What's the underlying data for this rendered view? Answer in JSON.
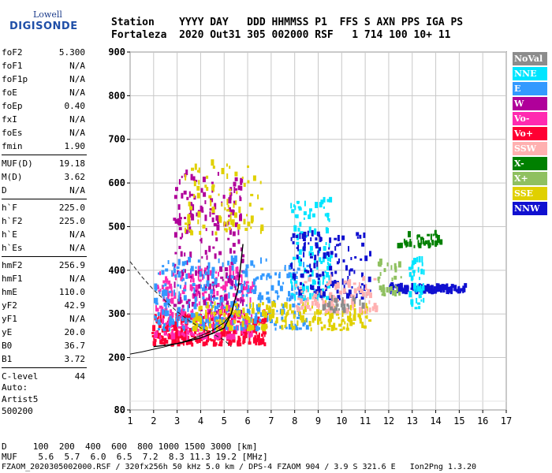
{
  "logo": {
    "top": "Lowell",
    "main": "DIGISONDE"
  },
  "header": {
    "line1": "Station    YYYY DAY   DDD HHMMSS P1  FFS S AXN PPS IGA PS",
    "line2": "Fortaleza  2020 Out31 305 002000 RSF   1 714 100 10+ 11"
  },
  "params": [
    [
      {
        "n": "foF2",
        "v": "5.300"
      },
      {
        "n": "foF1",
        "v": "N/A"
      },
      {
        "n": "foF1p",
        "v": "N/A"
      },
      {
        "n": "foE",
        "v": "N/A"
      },
      {
        "n": "foEp",
        "v": "0.40"
      },
      {
        "n": "fxI",
        "v": "N/A"
      },
      {
        "n": "foEs",
        "v": "N/A"
      },
      {
        "n": "fmin",
        "v": "1.90"
      }
    ],
    [
      {
        "n": "MUF(D)",
        "v": "19.18"
      },
      {
        "n": "M(D)",
        "v": "3.62"
      },
      {
        "n": "D",
        "v": "N/A"
      }
    ],
    [
      {
        "n": "h`F",
        "v": "225.0"
      },
      {
        "n": "h`F2",
        "v": "225.0"
      },
      {
        "n": "h`E",
        "v": "N/A"
      },
      {
        "n": "h`Es",
        "v": "N/A"
      }
    ],
    [
      {
        "n": "hmF2",
        "v": "256.9"
      },
      {
        "n": "hmF1",
        "v": "N/A"
      },
      {
        "n": "hmE",
        "v": "110.0"
      },
      {
        "n": "yF2",
        "v": "42.9"
      },
      {
        "n": "yF1",
        "v": "N/A"
      },
      {
        "n": "yE",
        "v": "20.0"
      },
      {
        "n": "B0",
        "v": "36.7"
      },
      {
        "n": "B1",
        "v": "3.72"
      }
    ],
    [
      {
        "n": "C-level",
        "v": "44"
      }
    ]
  ],
  "auto": [
    "Auto:",
    "Artist5",
    "500200"
  ],
  "legend": [
    {
      "label": "NoVal",
      "color": "#8c8c8c"
    },
    {
      "label": "NNE",
      "color": "#00e5ff"
    },
    {
      "label": "E",
      "color": "#3399ff"
    },
    {
      "label": "W",
      "color": "#b0009a"
    },
    {
      "label": "Vo-",
      "color": "#ff2ab0"
    },
    {
      "label": "Vo+",
      "color": "#ff0033"
    },
    {
      "label": "SSW",
      "color": "#ffb0b0"
    },
    {
      "label": "X-",
      "color": "#008000"
    },
    {
      "label": "X+",
      "color": "#8fc060"
    },
    {
      "label": "SSE",
      "color": "#e0d000"
    },
    {
      "label": "NNW",
      "color": "#1010d0"
    }
  ],
  "bottom": {
    "d_line": "D     100  200  400  600  800 1000 1500 3000 [km]",
    "muf_line": "MUF    5.6  5.7  6.0  6.5  7.2  8.3 11.3 19.2 [MHz]",
    "footer": "FZAOM_2020305002000.RSF / 320fx256h 50 kHz 5.0 km / DPS-4 FZAOM 904 / 3.9 S 321.6 E   Ion2Png 1.3.20"
  },
  "chart_data": {
    "type": "scatter",
    "xlim": [
      1,
      17
    ],
    "ylim": [
      80,
      900
    ],
    "x_ticks": [
      1,
      2,
      3,
      4,
      5,
      6,
      7,
      8,
      9,
      10,
      11,
      12,
      13,
      14,
      15,
      16,
      17
    ],
    "y_ticks": [
      80,
      200,
      300,
      400,
      500,
      600,
      700,
      800,
      900
    ],
    "grid": true,
    "legend_position": "right",
    "trace_virtual_height": {
      "x": [
        1.0,
        1.5,
        2.0,
        2.5,
        3.0,
        3.5,
        4.0,
        4.5,
        5.0,
        5.3
      ],
      "y": [
        208,
        213,
        219,
        225,
        232,
        240,
        250,
        262,
        280,
        300
      ]
    },
    "trace_dashed_profile": {
      "x": [
        1.0,
        1.5,
        2.0,
        2.5,
        3.0,
        3.5,
        4.0,
        4.5,
        5.0,
        5.3
      ],
      "y": [
        420,
        385,
        355,
        330,
        305,
        285,
        268,
        255,
        240,
        225
      ]
    },
    "trace_solid_black": {
      "x": [
        2.0,
        2.5,
        3.0,
        3.5,
        4.0,
        4.5,
        5.0,
        5.3,
        5.6,
        5.8
      ],
      "y": [
        225,
        228,
        232,
        238,
        245,
        255,
        268,
        300,
        360,
        460
      ]
    },
    "echo_clusters": [
      {
        "color": "#ff0033",
        "x": [
          1.9,
          6.8
        ],
        "y": [
          225,
          300
        ],
        "n": 300
      },
      {
        "color": "#ff2ab0",
        "x": [
          2.0,
          6.2
        ],
        "y": [
          240,
          400
        ],
        "n": 260
      },
      {
        "color": "#b0009a",
        "x": [
          2.8,
          5.8
        ],
        "y": [
          300,
          620
        ],
        "n": 200
      },
      {
        "color": "#3399ff",
        "x": [
          2.0,
          8.5
        ],
        "y": [
          260,
          420
        ],
        "n": 320
      },
      {
        "color": "#e0d000",
        "x": [
          3.5,
          11.3
        ],
        "y": [
          260,
          320
        ],
        "n": 220
      },
      {
        "color": "#e0d000",
        "x": [
          3.3,
          6.6
        ],
        "y": [
          480,
          640
        ],
        "n": 90
      },
      {
        "color": "#00e5ff",
        "x": [
          7.8,
          9.5
        ],
        "y": [
          330,
          560
        ],
        "n": 120
      },
      {
        "color": "#1010d0",
        "x": [
          7.8,
          11.2
        ],
        "y": [
          330,
          480
        ],
        "n": 140
      },
      {
        "color": "#ffb0b0",
        "x": [
          8.0,
          11.5
        ],
        "y": [
          300,
          380
        ],
        "n": 110
      },
      {
        "color": "#1010d0",
        "x": [
          12.0,
          15.2
        ],
        "y": [
          345,
          360
        ],
        "n": 120
      },
      {
        "color": "#00e5ff",
        "x": [
          12.8,
          13.5
        ],
        "y": [
          310,
          420
        ],
        "n": 40
      },
      {
        "color": "#008000",
        "x": [
          12.3,
          14.2
        ],
        "y": [
          450,
          480
        ],
        "n": 40
      },
      {
        "color": "#8fc060",
        "x": [
          11.5,
          12.5
        ],
        "y": [
          340,
          420
        ],
        "n": 30
      },
      {
        "color": "#8c8c8c",
        "x": [
          9.0,
          11.0
        ],
        "y": [
          300,
          330
        ],
        "n": 25
      }
    ]
  }
}
